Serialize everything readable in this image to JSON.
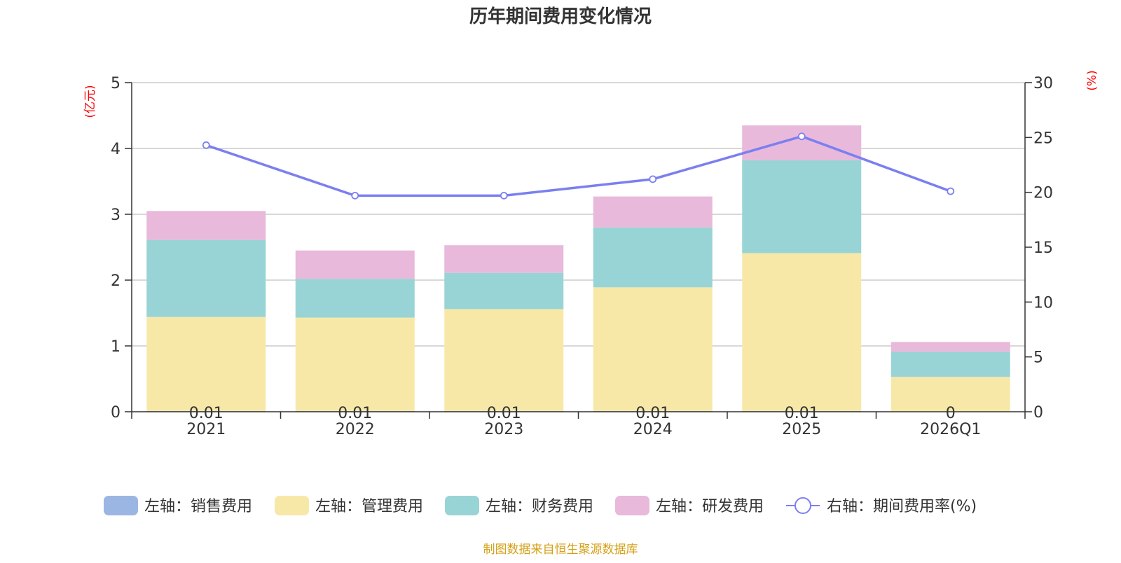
{
  "chart_data": {
    "type": "bar",
    "title": "历年期间费用变化情况",
    "categories": [
      "2021",
      "2022",
      "2023",
      "2024",
      "2025",
      "2026Q1"
    ],
    "left_axis": {
      "unit": "(亿元)",
      "ylim": [
        0,
        5
      ],
      "ticks": [
        "0",
        "1",
        "2",
        "3",
        "4",
        "5"
      ]
    },
    "right_axis": {
      "unit": "(%)",
      "ylim": [
        0,
        30
      ],
      "ticks": [
        "0",
        "5",
        "10",
        "15",
        "20",
        "25",
        "30"
      ]
    },
    "series": [
      {
        "name": "左轴：销售费用",
        "axis": "left",
        "color": "#9bb6e3",
        "values": [
          0.01,
          0.01,
          0.01,
          0.01,
          0.01,
          0
        ]
      },
      {
        "name": "左轴：管理费用",
        "axis": "left",
        "color": "#f8e8a8",
        "values": [
          1.43,
          1.42,
          1.55,
          1.88,
          2.4,
          0.53
        ]
      },
      {
        "name": "左轴：财务费用",
        "axis": "left",
        "color": "#98d4d5",
        "values": [
          1.17,
          0.59,
          0.55,
          0.91,
          1.41,
          0.38
        ]
      },
      {
        "name": "左轴：研发费用",
        "axis": "left",
        "color": "#e8b9da",
        "values": [
          0.44,
          0.43,
          0.42,
          0.47,
          0.53,
          0.15
        ]
      },
      {
        "name": "右轴：期间费用率(%)",
        "axis": "right",
        "type": "line",
        "color": "#7b7ff0",
        "values": [
          24.3,
          19.7,
          19.7,
          21.2,
          25.1,
          20.1
        ]
      }
    ],
    "bar_top_labels": [
      "0.01",
      "0.01",
      "0.01",
      "0.01",
      "0.01",
      "0"
    ],
    "grid": true,
    "legend_position": "bottom",
    "source": "制图数据来自恒生聚源数据库"
  }
}
